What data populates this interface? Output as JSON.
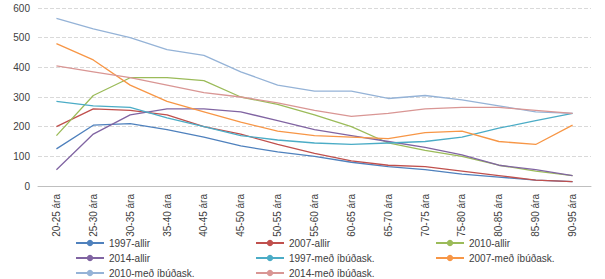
{
  "chart_data": {
    "type": "line",
    "categories": [
      "20-25 ára",
      "25-30 ára",
      "30-35 ára",
      "35-40 ára",
      "40-45 ára",
      "45-50 ára",
      "50-55 ára",
      "55-60 ára",
      "60-65 ára",
      "65-70 ára",
      "70-75 ára",
      "75-80 ára",
      "80-85 ára",
      "85-90 ára",
      "90-95 ára"
    ],
    "series": [
      {
        "name": "1997-allir",
        "color": "#4f81bd",
        "values": [
          125,
          205,
          210,
          190,
          165,
          135,
          115,
          100,
          80,
          65,
          55,
          40,
          30,
          20,
          15
        ]
      },
      {
        "name": "2007-allir",
        "color": "#c0504d",
        "values": [
          200,
          260,
          255,
          240,
          200,
          175,
          140,
          110,
          85,
          70,
          65,
          50,
          35,
          20,
          15
        ]
      },
      {
        "name": "2010-allir",
        "color": "#9bbb59",
        "values": [
          170,
          305,
          365,
          365,
          355,
          300,
          275,
          240,
          200,
          145,
          120,
          100,
          70,
          50,
          35
        ]
      },
      {
        "name": "2014-allir",
        "color": "#8064a2",
        "values": [
          55,
          175,
          240,
          260,
          260,
          250,
          220,
          190,
          170,
          150,
          130,
          105,
          70,
          55,
          35
        ]
      },
      {
        "name": "1997-með íbúðask.",
        "color": "#4bacc6",
        "values": [
          285,
          270,
          265,
          230,
          200,
          170,
          155,
          145,
          140,
          145,
          150,
          165,
          195,
          220,
          245
        ]
      },
      {
        "name": "2007-með íbúðask.",
        "color": "#f79646",
        "values": [
          480,
          425,
          340,
          285,
          250,
          215,
          185,
          170,
          165,
          160,
          180,
          185,
          150,
          140,
          205
        ]
      },
      {
        "name": "2010-með íbúðask.",
        "color": "#95b3d7",
        "values": [
          565,
          530,
          500,
          460,
          440,
          385,
          340,
          320,
          320,
          295,
          305,
          290,
          270,
          250,
          245
        ]
      },
      {
        "name": "2014-með íbúðask.",
        "color": "#d99694",
        "values": [
          405,
          385,
          365,
          340,
          315,
          300,
          280,
          255,
          235,
          245,
          260,
          265,
          265,
          255,
          245
        ]
      }
    ],
    "ylim": [
      0,
      600
    ],
    "yticks": [
      0,
      100,
      200,
      300,
      400,
      500,
      600
    ],
    "grid": true,
    "legend": "bottom"
  }
}
